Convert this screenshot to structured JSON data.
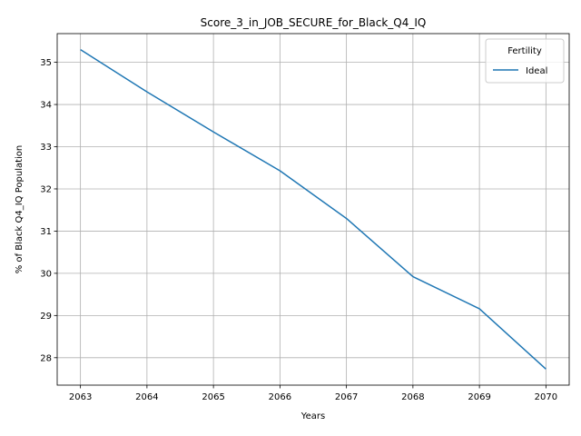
{
  "chart_data": {
    "type": "line",
    "title": "Score_3_in_JOB_SECURE_for_Black_Q4_IQ",
    "xlabel": "Years",
    "ylabel": "% of Black Q4_IQ Population",
    "x": [
      2063,
      2064,
      2065,
      2066,
      2067,
      2068,
      2069,
      2070
    ],
    "xlim": [
      2062.65,
      2070.35
    ],
    "ylim": [
      27.35,
      35.68
    ],
    "xticks": [
      2063,
      2064,
      2065,
      2066,
      2067,
      2068,
      2069,
      2070
    ],
    "yticks": [
      28,
      29,
      30,
      31,
      32,
      33,
      34,
      35
    ],
    "grid": true,
    "legend": {
      "title": "Fertility",
      "placement": "top-right"
    },
    "series": [
      {
        "name": "Ideal",
        "color": "#1f77b4",
        "values": [
          35.3,
          34.3,
          33.35,
          32.43,
          31.3,
          29.92,
          29.16,
          27.73
        ]
      }
    ]
  }
}
